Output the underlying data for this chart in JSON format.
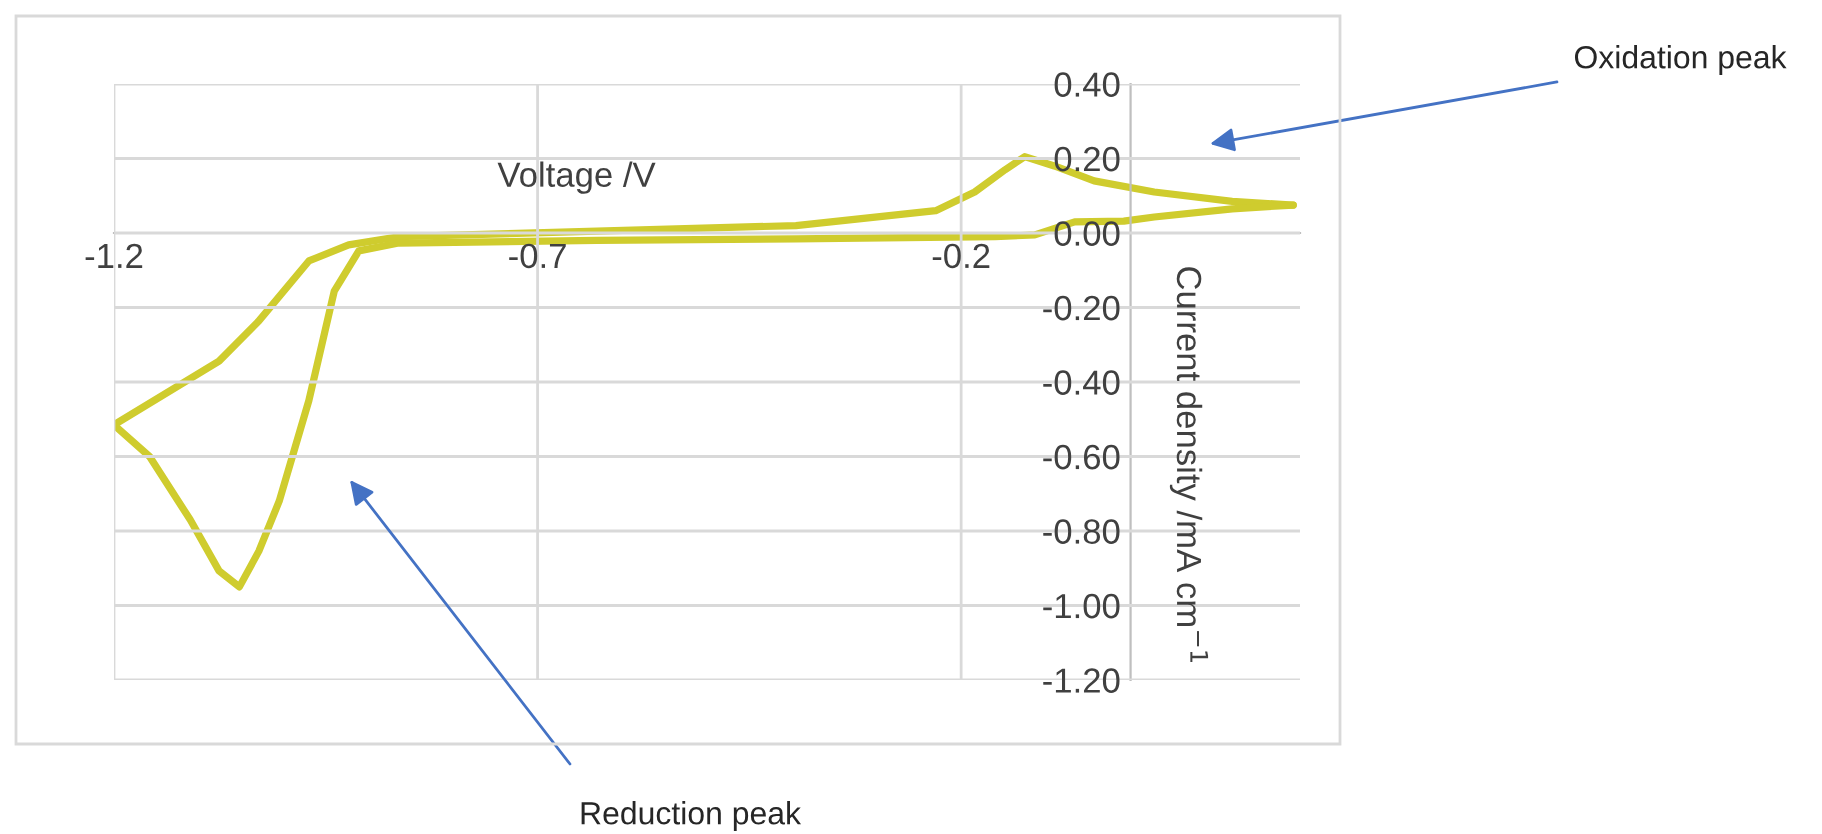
{
  "chart_data": {
    "type": "line",
    "xlabel": "Voltage /V",
    "ylabel": "Current density /mA cm$^{−1}$",
    "xlim": [
      -1.2,
      0.2
    ],
    "ylim": [
      -1.2,
      0.4
    ],
    "xticks": [
      {
        "value": -1.2,
        "label": "-1.2"
      },
      {
        "value": -0.7,
        "label": "-0.7"
      },
      {
        "value": -0.2,
        "label": "-0.2"
      }
    ],
    "yticks": [
      {
        "value": -1.2,
        "label": "-1.20"
      },
      {
        "value": -1.0,
        "label": "-1.00"
      },
      {
        "value": -0.8,
        "label": "-0.80"
      },
      {
        "value": -0.6,
        "label": "-0.60"
      },
      {
        "value": -0.4,
        "label": "-0.40"
      },
      {
        "value": -0.2,
        "label": "-0.20"
      },
      {
        "value": 0.0,
        "label": "0.00"
      },
      {
        "value": 0.2,
        "label": "0.20"
      },
      {
        "value": 0.4,
        "label": "0.40"
      }
    ],
    "grid": true,
    "marker": "none",
    "line_style": "solid",
    "series": [
      {
        "color": "#cfcc2e",
        "x": [
          -1.2,
          -1.076,
          -1.029,
          -0.97,
          -0.923,
          -0.864,
          -0.63,
          -0.395,
          -0.23,
          -0.184,
          -0.148,
          -0.125,
          -0.09,
          -0.043,
          0.028,
          0.12,
          0.192
        ],
        "values": [
          -0.515,
          -0.344,
          -0.236,
          -0.075,
          -0.032,
          -0.01,
          0.005,
          0.02,
          0.06,
          0.11,
          0.17,
          0.205,
          0.18,
          0.14,
          0.11,
          0.085,
          0.075
        ]
      },
      {
        "color": "#cfcc2e",
        "x": [
          -1.2,
          -1.158,
          -1.11,
          -1.076,
          -1.052,
          -1.029,
          -1.005,
          -0.97,
          -0.94,
          -0.911,
          -0.864,
          -0.63,
          -0.395,
          -0.16,
          -0.113,
          -0.066,
          -0.008,
          0.028,
          0.12,
          0.192
        ],
        "values": [
          -0.515,
          -0.6,
          -0.77,
          -0.907,
          -0.95,
          -0.854,
          -0.72,
          -0.45,
          -0.156,
          -0.048,
          -0.027,
          -0.02,
          -0.016,
          -0.01,
          -0.005,
          0.03,
          0.032,
          0.043,
          0.065,
          0.075
        ]
      }
    ],
    "annotations": [
      "Oxidation peak",
      "Reduction peak"
    ]
  }
}
